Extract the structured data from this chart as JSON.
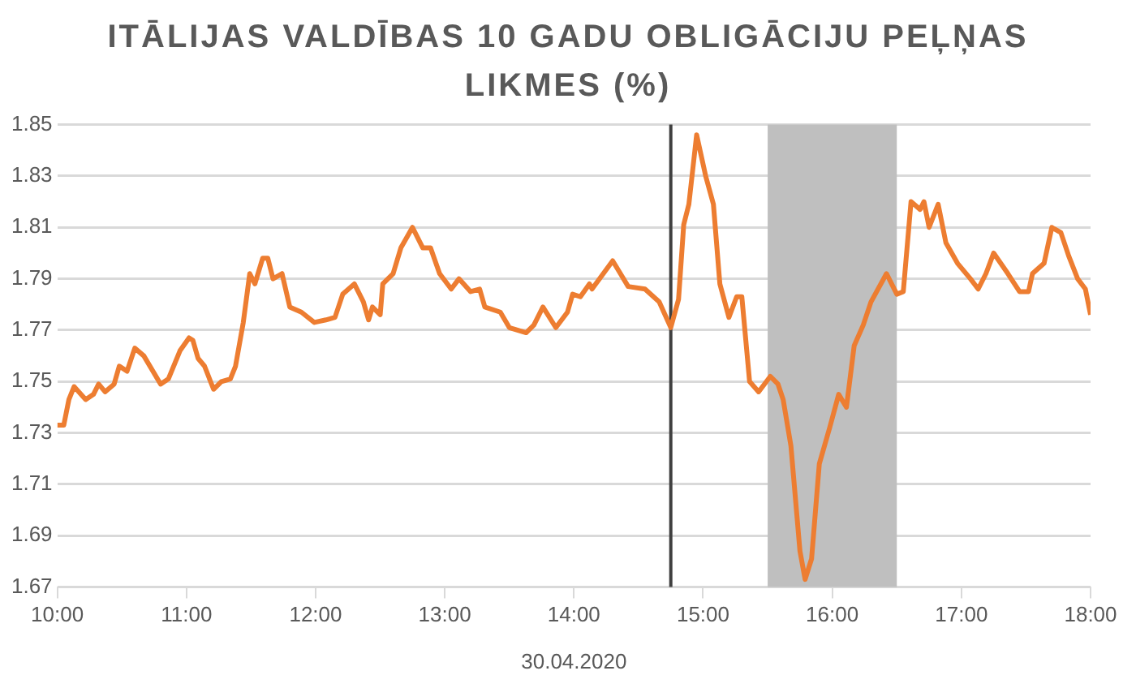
{
  "chart_data": {
    "type": "line",
    "title": "ITĀLIJAS VALDĪBAS 10 GADU OBLIGĀCIJU PEĻŅAS LIKMES (%)",
    "xlabel": "30.04.2020",
    "x": [
      10.0,
      10.05,
      10.09,
      10.13,
      10.22,
      10.28,
      10.32,
      10.37,
      10.44,
      10.48,
      10.54,
      10.6,
      10.67,
      10.8,
      10.86,
      10.95,
      11.02,
      11.05,
      11.09,
      11.14,
      11.21,
      11.27,
      11.34,
      11.38,
      11.44,
      11.49,
      11.53,
      11.59,
      11.63,
      11.67,
      11.74,
      11.8,
      11.89,
      11.99,
      12.08,
      12.15,
      12.21,
      12.3,
      12.37,
      12.41,
      12.44,
      12.5,
      12.52,
      12.6,
      12.66,
      12.75,
      12.83,
      12.89,
      12.96,
      13.05,
      13.11,
      13.2,
      13.27,
      13.31,
      13.43,
      13.5,
      13.63,
      13.69,
      13.76,
      13.86,
      13.95,
      13.99,
      14.05,
      14.12,
      14.14,
      14.3,
      14.42,
      14.55,
      14.66,
      14.75,
      14.81,
      14.85,
      14.89,
      14.95,
      15.02,
      15.08,
      15.13,
      15.2,
      15.26,
      15.3,
      15.36,
      15.43,
      15.52,
      15.58,
      15.62,
      15.68,
      15.75,
      15.79,
      15.84,
      15.9,
      15.98,
      16.05,
      16.11,
      16.17,
      16.24,
      16.3,
      16.42,
      16.5,
      16.55,
      16.61,
      16.68,
      16.71,
      16.75,
      16.82,
      16.88,
      16.97,
      17.07,
      17.13,
      17.19,
      17.25,
      17.36,
      17.45,
      17.52,
      17.55,
      17.64,
      17.7,
      17.77,
      17.83,
      17.9,
      17.96,
      18.0
    ],
    "series": [
      {
        "color": "#ed7d31",
        "values": [
          1.733,
          1.733,
          1.743,
          1.748,
          1.743,
          1.745,
          1.749,
          1.746,
          1.749,
          1.756,
          1.754,
          1.763,
          1.76,
          1.749,
          1.751,
          1.762,
          1.767,
          1.766,
          1.759,
          1.756,
          1.747,
          1.75,
          1.751,
          1.756,
          1.773,
          1.792,
          1.788,
          1.798,
          1.798,
          1.79,
          1.792,
          1.779,
          1.777,
          1.773,
          1.774,
          1.775,
          1.784,
          1.788,
          1.781,
          1.774,
          1.779,
          1.776,
          1.788,
          1.792,
          1.802,
          1.81,
          1.802,
          1.802,
          1.792,
          1.786,
          1.79,
          1.785,
          1.786,
          1.779,
          1.777,
          1.771,
          1.769,
          1.772,
          1.779,
          1.771,
          1.777,
          1.784,
          1.783,
          1.788,
          1.786,
          1.797,
          1.787,
          1.786,
          1.781,
          1.771,
          1.782,
          1.811,
          1.819,
          1.846,
          1.83,
          1.819,
          1.788,
          1.775,
          1.783,
          1.783,
          1.75,
          1.746,
          1.752,
          1.749,
          1.743,
          1.725,
          1.684,
          1.673,
          1.681,
          1.718,
          1.732,
          1.745,
          1.74,
          1.764,
          1.772,
          1.781,
          1.792,
          1.784,
          1.785,
          1.82,
          1.817,
          1.82,
          1.81,
          1.819,
          1.804,
          1.796,
          1.79,
          1.786,
          1.792,
          1.8,
          1.792,
          1.785,
          1.785,
          1.792,
          1.796,
          1.81,
          1.808,
          1.799,
          1.79,
          1.786,
          1.776
        ]
      }
    ],
    "xlim": [
      10,
      18
    ],
    "xticks": [
      {
        "value": 10,
        "label": "10:00"
      },
      {
        "value": 11,
        "label": "11:00"
      },
      {
        "value": 12,
        "label": "12:00"
      },
      {
        "value": 13,
        "label": "13:00"
      },
      {
        "value": 14,
        "label": "14:00"
      },
      {
        "value": 15,
        "label": "15:00"
      },
      {
        "value": 16,
        "label": "16:00"
      },
      {
        "value": 17,
        "label": "17:00"
      },
      {
        "value": 18,
        "label": "18:00"
      }
    ],
    "ylim": [
      1.67,
      1.85
    ],
    "yticks": [
      1.67,
      1.69,
      1.71,
      1.73,
      1.75,
      1.77,
      1.79,
      1.81,
      1.83,
      1.85
    ],
    "ref_lines": [
      {
        "axis": "x",
        "value": 14.75,
        "color": "#404040"
      }
    ],
    "bands": [
      {
        "axis": "x",
        "from": 15.5,
        "to": 16.5,
        "color": "#bfbfbf"
      }
    ],
    "grid": "y",
    "legend": false,
    "marker": "none",
    "line_style": "solid"
  }
}
